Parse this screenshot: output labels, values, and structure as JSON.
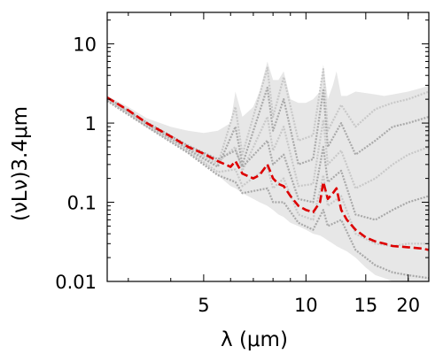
{
  "chart_data": {
    "type": "scatter",
    "title": "",
    "xlabel": "λ (μm)",
    "ylabel": "(νLν)3.4μm",
    "xscale": "log",
    "yscale": "log",
    "xlim": [
      2.6,
      23
    ],
    "ylim": [
      0.01,
      25
    ],
    "x_ticks": [
      {
        "value": 5,
        "label": "5"
      },
      {
        "value": 10,
        "label": "10"
      },
      {
        "value": 15,
        "label": "15"
      },
      {
        "value": 20,
        "label": "20"
      }
    ],
    "y_ticks": [
      {
        "value": 0.01,
        "label": "0.01"
      },
      {
        "value": 0.1,
        "label": "0.1"
      },
      {
        "value": 1,
        "label": "1"
      },
      {
        "value": 10,
        "label": "10"
      }
    ],
    "grid": false,
    "legend": "none",
    "colors": {
      "model_spectra": "#c8c8c8",
      "model_spectra_dark": "#a9a9a9",
      "median_spectrum": "#dd0000"
    },
    "series": [
      {
        "style": "dashed",
        "color": "#dd0000",
        "x": [
          2.6,
          3.0,
          3.4,
          4.0,
          4.5,
          5.0,
          5.5,
          6.0,
          6.2,
          6.5,
          7.0,
          7.3,
          7.7,
          8.0,
          8.3,
          8.6,
          9.0,
          9.5,
          10.0,
          10.5,
          11.0,
          11.25,
          11.6,
          12.0,
          12.3,
          12.7,
          13.2,
          14.0,
          15.0,
          16.0,
          17.0,
          18.0,
          20.0,
          22.0,
          23.0
        ],
        "y": [
          2.1,
          1.45,
          1.0,
          0.68,
          0.5,
          0.41,
          0.33,
          0.28,
          0.33,
          0.23,
          0.2,
          0.22,
          0.3,
          0.2,
          0.17,
          0.16,
          0.12,
          0.09,
          0.08,
          0.075,
          0.1,
          0.18,
          0.11,
          0.13,
          0.15,
          0.08,
          0.06,
          0.045,
          0.036,
          0.032,
          0.03,
          0.028,
          0.027,
          0.026,
          0.025
        ]
      }
    ],
    "envelope": {
      "color": "#d4d4d4",
      "x": [
        2.6,
        3.0,
        3.4,
        4.0,
        4.5,
        5.0,
        5.5,
        6.0,
        6.2,
        6.5,
        7.0,
        7.3,
        7.7,
        8.0,
        8.3,
        8.6,
        9.0,
        9.5,
        10.0,
        10.5,
        11.0,
        11.25,
        11.6,
        12.0,
        12.3,
        12.7,
        13.2,
        14.0,
        15.0,
        16.0,
        17.0,
        18.0,
        20.0,
        22.0,
        23.0
      ],
      "upper": [
        2.2,
        1.6,
        1.15,
        0.9,
        0.8,
        0.75,
        0.8,
        1.0,
        2.5,
        1.2,
        1.6,
        2.5,
        6.0,
        3.5,
        3.5,
        4.5,
        2.0,
        1.8,
        1.8,
        2.0,
        2.5,
        5.5,
        2.0,
        3.0,
        4.5,
        2.2,
        2.2,
        2.5,
        2.4,
        2.3,
        2.2,
        2.3,
        2.5,
        2.8,
        3.0
      ],
      "lower": [
        1.9,
        1.3,
        0.88,
        0.58,
        0.42,
        0.3,
        0.22,
        0.16,
        0.15,
        0.13,
        0.11,
        0.1,
        0.09,
        0.08,
        0.07,
        0.065,
        0.055,
        0.05,
        0.045,
        0.04,
        0.038,
        0.036,
        0.033,
        0.03,
        0.028,
        0.026,
        0.024,
        0.02,
        0.015,
        0.012,
        0.011,
        0.01,
        0.01,
        0.01,
        0.01
      ]
    },
    "model_spectra": [
      {
        "x": [
          2.6,
          3.4,
          4.5,
          5.5,
          6.2,
          6.5,
          7.7,
          8.0,
          8.6,
          9.5,
          10.5,
          11.25,
          11.6,
          12.7,
          14.0,
          16.0,
          18.0,
          20.0,
          23.0
        ],
        "y": [
          1.95,
          0.95,
          0.48,
          0.3,
          1.6,
          0.4,
          5.0,
          1.2,
          3.8,
          0.6,
          0.7,
          4.8,
          0.8,
          1.7,
          0.9,
          1.5,
          1.8,
          2.0,
          2.5
        ]
      },
      {
        "x": [
          2.6,
          3.4,
          4.5,
          5.5,
          6.2,
          6.5,
          7.7,
          8.0,
          8.6,
          9.5,
          10.5,
          11.25,
          11.6,
          12.7,
          14.0,
          16.0,
          18.0,
          20.0,
          23.0
        ],
        "y": [
          2.0,
          0.98,
          0.46,
          0.28,
          0.9,
          0.3,
          2.8,
          0.8,
          2.0,
          0.3,
          0.35,
          2.6,
          0.5,
          1.0,
          0.4,
          0.6,
          0.9,
          1.0,
          1.2
        ]
      },
      {
        "x": [
          2.6,
          3.4,
          4.5,
          5.5,
          6.2,
          6.5,
          7.7,
          8.0,
          8.6,
          9.5,
          10.5,
          11.25,
          11.6,
          12.7,
          14.0,
          16.0,
          18.0,
          20.0,
          23.0
        ],
        "y": [
          2.05,
          1.0,
          0.5,
          0.32,
          0.5,
          0.25,
          1.2,
          0.45,
          0.9,
          0.16,
          0.17,
          1.1,
          0.3,
          0.45,
          0.15,
          0.2,
          0.3,
          0.4,
          0.5
        ]
      },
      {
        "x": [
          2.6,
          3.4,
          4.5,
          5.5,
          6.2,
          6.5,
          7.7,
          8.0,
          8.6,
          9.5,
          10.5,
          11.25,
          11.6,
          12.7,
          14.0,
          16.0,
          18.0,
          20.0,
          23.0
        ],
        "y": [
          2.1,
          1.02,
          0.52,
          0.35,
          0.45,
          0.28,
          0.6,
          0.3,
          0.4,
          0.11,
          0.1,
          0.5,
          0.18,
          0.25,
          0.07,
          0.06,
          0.08,
          0.1,
          0.12
        ]
      },
      {
        "x": [
          2.6,
          3.4,
          4.5,
          5.5,
          6.2,
          6.5,
          7.7,
          8.0,
          8.6,
          9.5,
          10.5,
          11.25,
          11.6,
          12.7,
          14.0,
          16.0,
          18.0,
          20.0,
          23.0
        ],
        "y": [
          2.0,
          0.92,
          0.44,
          0.24,
          0.26,
          0.16,
          0.28,
          0.15,
          0.2,
          0.07,
          0.06,
          0.22,
          0.09,
          0.12,
          0.04,
          0.03,
          0.028,
          0.03,
          0.03
        ]
      },
      {
        "x": [
          2.6,
          3.4,
          4.5,
          5.5,
          6.2,
          6.5,
          7.7,
          8.0,
          8.6,
          9.5,
          10.5,
          11.25,
          11.6,
          12.7,
          14.0,
          16.0,
          18.0,
          20.0,
          23.0
        ],
        "y": [
          1.9,
          0.9,
          0.42,
          0.22,
          0.18,
          0.13,
          0.15,
          0.1,
          0.1,
          0.055,
          0.045,
          0.08,
          0.05,
          0.06,
          0.025,
          0.016,
          0.013,
          0.012,
          0.011
        ]
      }
    ]
  }
}
